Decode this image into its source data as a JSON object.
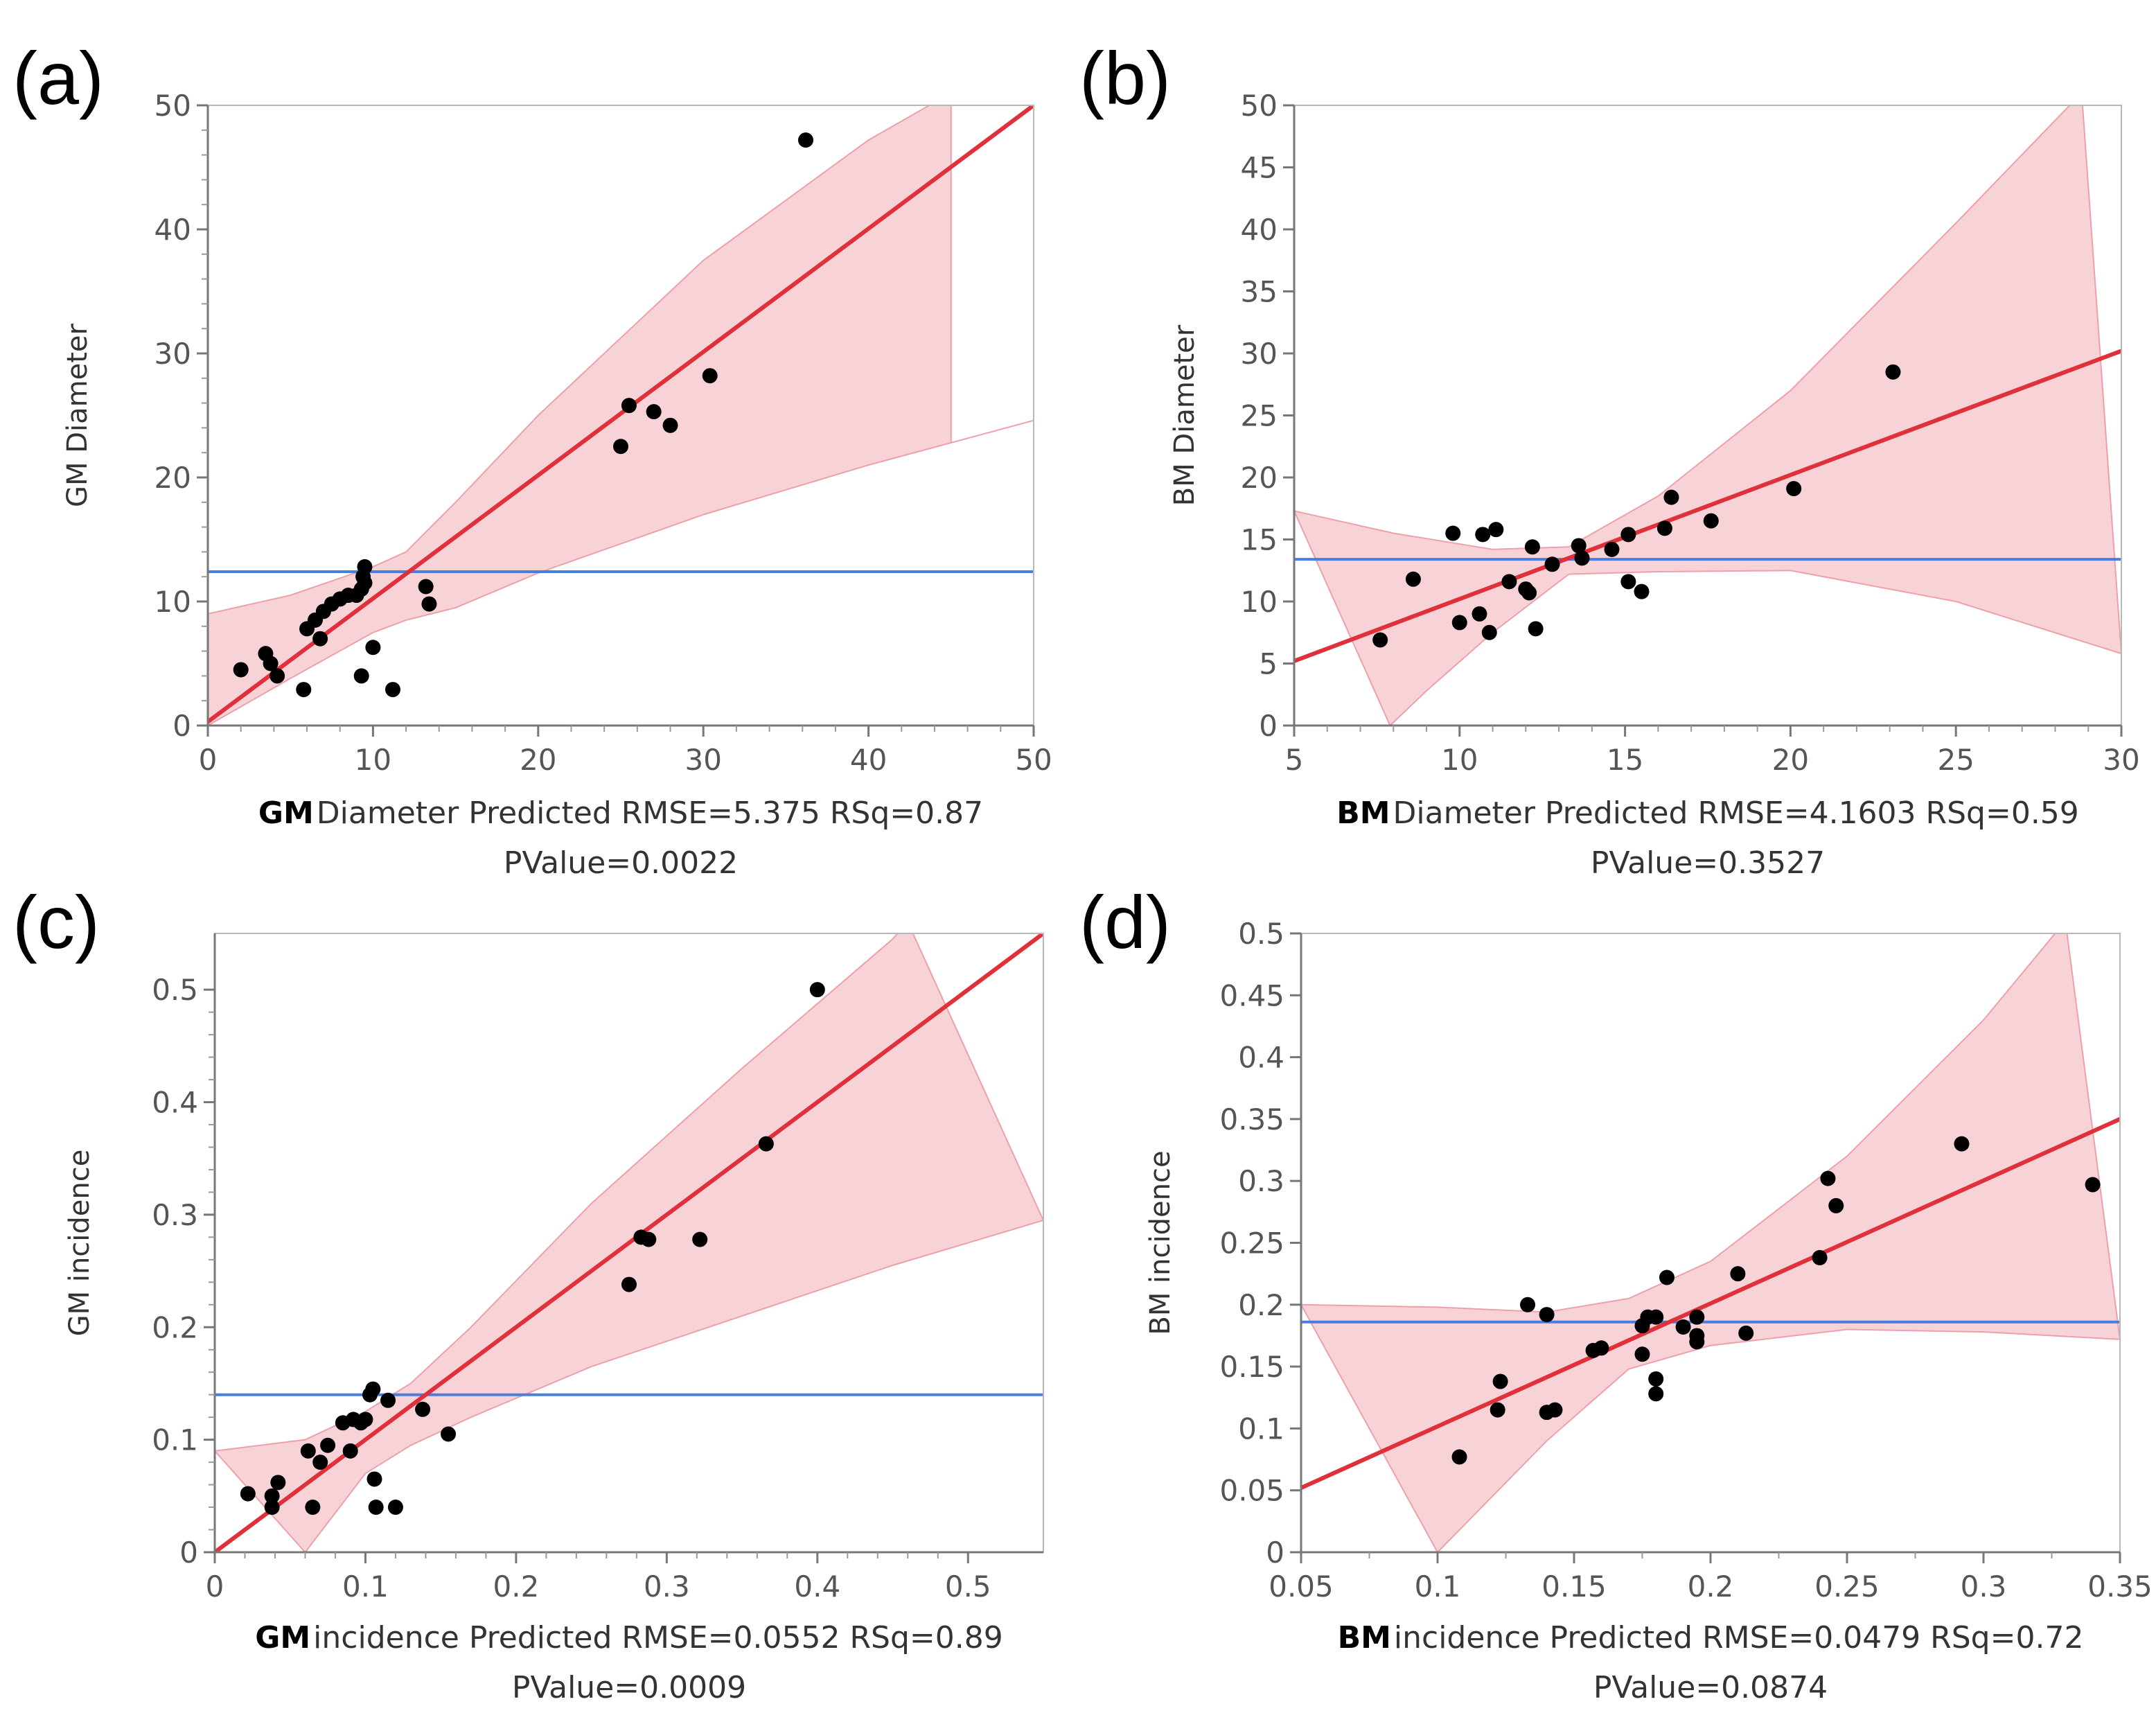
{
  "chart_data": [
    {
      "type": "scatter",
      "panel_label": "(a)",
      "ylabel": "GM Diameter",
      "xlabel_bold": "GM",
      "xlabel_rest": "Diameter Predicted RMSE=5.375 RSq=0.87",
      "pvalue_text": "PValue=0.0022",
      "xlim": [
        0,
        50
      ],
      "ylim": [
        0,
        50
      ],
      "xticks": [
        0,
        10,
        20,
        30,
        40,
        50
      ],
      "yticks": [
        0,
        10,
        20,
        30,
        40,
        50
      ],
      "xtick_labels": [
        "0",
        "10",
        "20",
        "30",
        "40",
        "50"
      ],
      "ytick_labels": [
        "0",
        "10",
        "20",
        "30",
        "40",
        "50"
      ],
      "fit_line": {
        "start": [
          0,
          0.3
        ],
        "end": [
          50,
          50
        ],
        "color": "#e0303a"
      },
      "mean_line": {
        "y": 12.4,
        "color": "#4a7de0"
      },
      "confidence_band": {
        "upper": [
          [
            0,
            9.0
          ],
          [
            5,
            10.5
          ],
          [
            10,
            12.8
          ],
          [
            12,
            14.0
          ],
          [
            15,
            18.0
          ],
          [
            20,
            25.0
          ],
          [
            30,
            37.5
          ],
          [
            40,
            47.2
          ],
          [
            45,
            51
          ]
        ],
        "lower": [
          [
            45,
            22.8
          ],
          [
            50,
            24.6
          ],
          [
            40,
            21.0
          ],
          [
            30,
            17.0
          ],
          [
            20,
            12.3
          ],
          [
            15,
            9.5
          ],
          [
            12,
            8.5
          ],
          [
            10,
            7.5
          ],
          [
            5,
            3.8
          ],
          [
            0,
            0
          ]
        ],
        "color": "#f7d3d8"
      },
      "points": [
        [
          2,
          4.5
        ],
        [
          3.5,
          5.8
        ],
        [
          3.8,
          5
        ],
        [
          4.2,
          4
        ],
        [
          5.8,
          2.9
        ],
        [
          6,
          7.8
        ],
        [
          6.5,
          8.5
        ],
        [
          6.8,
          7
        ],
        [
          7,
          9.2
        ],
        [
          7.5,
          9.8
        ],
        [
          8,
          10.2
        ],
        [
          8.5,
          10.5
        ],
        [
          9,
          10.5
        ],
        [
          9.3,
          11
        ],
        [
          9.4,
          12
        ],
        [
          9.5,
          12.8
        ],
        [
          9.5,
          11.5
        ],
        [
          9.3,
          4
        ],
        [
          10,
          6.3
        ],
        [
          11.2,
          2.9
        ],
        [
          13.2,
          11.2
        ],
        [
          13.4,
          9.8
        ],
        [
          25,
          22.5
        ],
        [
          25.5,
          25.8
        ],
        [
          27,
          25.3
        ],
        [
          28,
          24.2
        ],
        [
          30.4,
          28.2
        ],
        [
          36.2,
          47.2
        ]
      ]
    },
    {
      "type": "scatter",
      "panel_label": "(b)",
      "ylabel": "BM Diameter",
      "xlabel_bold": "BM",
      "xlabel_rest": "Diameter Predicted RMSE=4.1603 RSq=0.59",
      "pvalue_text": "PValue=0.3527",
      "xlim": [
        5,
        30
      ],
      "ylim": [
        0,
        50
      ],
      "xticks": [
        5,
        10,
        15,
        20,
        25,
        30
      ],
      "yticks": [
        0,
        5,
        10,
        15,
        20,
        25,
        30,
        35,
        40,
        45,
        50
      ],
      "xtick_labels": [
        "5",
        "10",
        "15",
        "20",
        "25",
        "30"
      ],
      "ytick_labels": [
        "0",
        "5",
        "10",
        "15",
        "20",
        "25",
        "30",
        "35",
        "40",
        "45",
        "50"
      ],
      "fit_line": {
        "start": [
          5,
          5.2
        ],
        "end": [
          30,
          30.2
        ],
        "color": "#e0303a"
      },
      "mean_line": {
        "y": 13.4,
        "color": "#4a7de0"
      },
      "confidence_band": {
        "upper": [
          [
            5,
            17.3
          ],
          [
            8,
            15.5
          ],
          [
            11,
            14.2
          ],
          [
            13.3,
            14.4
          ],
          [
            16,
            18.5
          ],
          [
            20,
            27.0
          ],
          [
            25,
            40.5
          ],
          [
            28.8,
            51
          ]
        ],
        "lower": [
          [
            30,
            5.8
          ],
          [
            25,
            10.0
          ],
          [
            20,
            12.5
          ],
          [
            16,
            12.4
          ],
          [
            13.3,
            12.2
          ],
          [
            11,
            7.5
          ],
          [
            9,
            2.8
          ],
          [
            7.9,
            0
          ]
        ],
        "color": "#f7d3d8"
      },
      "points": [
        [
          7.6,
          6.9
        ],
        [
          8.6,
          11.8
        ],
        [
          9.8,
          15.5
        ],
        [
          10,
          8.3
        ],
        [
          10.6,
          9
        ],
        [
          10.7,
          15.4
        ],
        [
          10.9,
          7.5
        ],
        [
          11.1,
          15.8
        ],
        [
          11.5,
          11.6
        ],
        [
          12,
          11
        ],
        [
          12.1,
          10.7
        ],
        [
          12.2,
          14.4
        ],
        [
          12.3,
          7.8
        ],
        [
          12.8,
          13
        ],
        [
          13.6,
          14.5
        ],
        [
          13.7,
          13.5
        ],
        [
          14.6,
          14.2
        ],
        [
          15.1,
          15.4
        ],
        [
          15.1,
          11.6
        ],
        [
          15.5,
          10.8
        ],
        [
          16.2,
          15.9
        ],
        [
          16.4,
          18.4
        ],
        [
          17.6,
          16.5
        ],
        [
          20.1,
          19.1
        ],
        [
          23.1,
          28.5
        ]
      ]
    },
    {
      "type": "scatter",
      "panel_label": "(c)",
      "ylabel": "GM incidence",
      "xlabel_bold": "GM",
      "xlabel_rest": "incidence Predicted RMSE=0.0552 RSq=0.89",
      "pvalue_text": "PValue=0.0009",
      "xlim": [
        0,
        0.55
      ],
      "ylim": [
        0,
        0.55
      ],
      "xticks": [
        0,
        0.1,
        0.2,
        0.3,
        0.4,
        0.5
      ],
      "yticks": [
        0,
        0.1,
        0.2,
        0.3,
        0.4,
        0.5
      ],
      "xtick_labels": [
        "0",
        "0.1",
        "0.2",
        "0.3",
        "0.4",
        "0.5"
      ],
      "ytick_labels": [
        "0",
        "0.1",
        "0.2",
        "0.3",
        "0.4",
        "0.5"
      ],
      "fit_line": {
        "start": [
          0,
          0.0
        ],
        "end": [
          0.55,
          0.55
        ],
        "color": "#e0303a"
      },
      "mean_line": {
        "y": 0.14,
        "color": "#4a7de0"
      },
      "confidence_band": {
        "upper": [
          [
            0,
            0.09
          ],
          [
            0.06,
            0.1
          ],
          [
            0.1,
            0.125
          ],
          [
            0.13,
            0.15
          ],
          [
            0.17,
            0.2
          ],
          [
            0.25,
            0.31
          ],
          [
            0.35,
            0.43
          ],
          [
            0.45,
            0.545
          ],
          [
            0.46,
            0.56
          ]
        ],
        "lower": [
          [
            0.55,
            0.295
          ],
          [
            0.45,
            0.255
          ],
          [
            0.35,
            0.21
          ],
          [
            0.25,
            0.165
          ],
          [
            0.17,
            0.12
          ],
          [
            0.13,
            0.095
          ],
          [
            0.1,
            0.07
          ],
          [
            0.06,
            0.0
          ]
        ],
        "color": "#f7d3d8"
      },
      "points": [
        [
          0.022,
          0.052
        ],
        [
          0.038,
          0.04
        ],
        [
          0.038,
          0.05
        ],
        [
          0.042,
          0.062
        ],
        [
          0.062,
          0.09
        ],
        [
          0.065,
          0.04
        ],
        [
          0.07,
          0.08
        ],
        [
          0.075,
          0.095
        ],
        [
          0.085,
          0.115
        ],
        [
          0.09,
          0.09
        ],
        [
          0.092,
          0.118
        ],
        [
          0.097,
          0.115
        ],
        [
          0.1,
          0.118
        ],
        [
          0.103,
          0.14
        ],
        [
          0.105,
          0.145
        ],
        [
          0.106,
          0.065
        ],
        [
          0.107,
          0.04
        ],
        [
          0.115,
          0.135
        ],
        [
          0.12,
          0.04
        ],
        [
          0.138,
          0.127
        ],
        [
          0.155,
          0.105
        ],
        [
          0.275,
          0.238
        ],
        [
          0.283,
          0.28
        ],
        [
          0.288,
          0.278
        ],
        [
          0.322,
          0.278
        ],
        [
          0.366,
          0.363
        ],
        [
          0.4,
          0.5
        ]
      ]
    },
    {
      "type": "scatter",
      "panel_label": "(d)",
      "ylabel": "BM incidence",
      "xlabel_bold": "BM",
      "xlabel_rest": "incidence Predicted RMSE=0.0479 RSq=0.72",
      "pvalue_text": "PValue=0.0874",
      "xlim": [
        0.05,
        0.35
      ],
      "ylim": [
        0,
        0.5
      ],
      "xticks": [
        0.05,
        0.1,
        0.15,
        0.2,
        0.25,
        0.3,
        0.35
      ],
      "yticks": [
        0,
        0.05,
        0.1,
        0.15,
        0.2,
        0.25,
        0.3,
        0.35,
        0.4,
        0.45,
        0.5
      ],
      "xtick_labels": [
        "0.05",
        "0.1",
        "0.15",
        "0.2",
        "0.25",
        "0.3",
        "0.35"
      ],
      "ytick_labels": [
        "0",
        "0.05",
        "0.1",
        "0.15",
        "0.2",
        "0.25",
        "0.3",
        "0.35",
        "0.4",
        "0.45",
        "0.5"
      ],
      "fit_line": {
        "start": [
          0.05,
          0.052
        ],
        "end": [
          0.35,
          0.35
        ],
        "color": "#e0303a"
      },
      "mean_line": {
        "y": 0.186,
        "color": "#4a7de0"
      },
      "confidence_band": {
        "upper": [
          [
            0.05,
            0.2
          ],
          [
            0.1,
            0.198
          ],
          [
            0.14,
            0.194
          ],
          [
            0.17,
            0.205
          ],
          [
            0.2,
            0.235
          ],
          [
            0.25,
            0.32
          ],
          [
            0.3,
            0.43
          ],
          [
            0.33,
            0.51
          ]
        ],
        "lower": [
          [
            0.35,
            0.172
          ],
          [
            0.3,
            0.178
          ],
          [
            0.25,
            0.18
          ],
          [
            0.2,
            0.167
          ],
          [
            0.17,
            0.148
          ],
          [
            0.14,
            0.09
          ],
          [
            0.1,
            0.0
          ]
        ],
        "color": "#f7d3d8"
      },
      "points": [
        [
          0.108,
          0.077
        ],
        [
          0.122,
          0.115
        ],
        [
          0.123,
          0.138
        ],
        [
          0.133,
          0.2
        ],
        [
          0.14,
          0.192
        ],
        [
          0.14,
          0.113
        ],
        [
          0.143,
          0.115
        ],
        [
          0.157,
          0.163
        ],
        [
          0.16,
          0.165
        ],
        [
          0.175,
          0.16
        ],
        [
          0.175,
          0.183
        ],
        [
          0.177,
          0.19
        ],
        [
          0.18,
          0.19
        ],
        [
          0.18,
          0.14
        ],
        [
          0.18,
          0.128
        ],
        [
          0.184,
          0.222
        ],
        [
          0.19,
          0.182
        ],
        [
          0.195,
          0.17
        ],
        [
          0.195,
          0.175
        ],
        [
          0.195,
          0.19
        ],
        [
          0.21,
          0.225
        ],
        [
          0.213,
          0.177
        ],
        [
          0.24,
          0.238
        ],
        [
          0.243,
          0.302
        ],
        [
          0.246,
          0.28
        ],
        [
          0.292,
          0.33
        ],
        [
          0.34,
          0.297
        ]
      ]
    }
  ]
}
